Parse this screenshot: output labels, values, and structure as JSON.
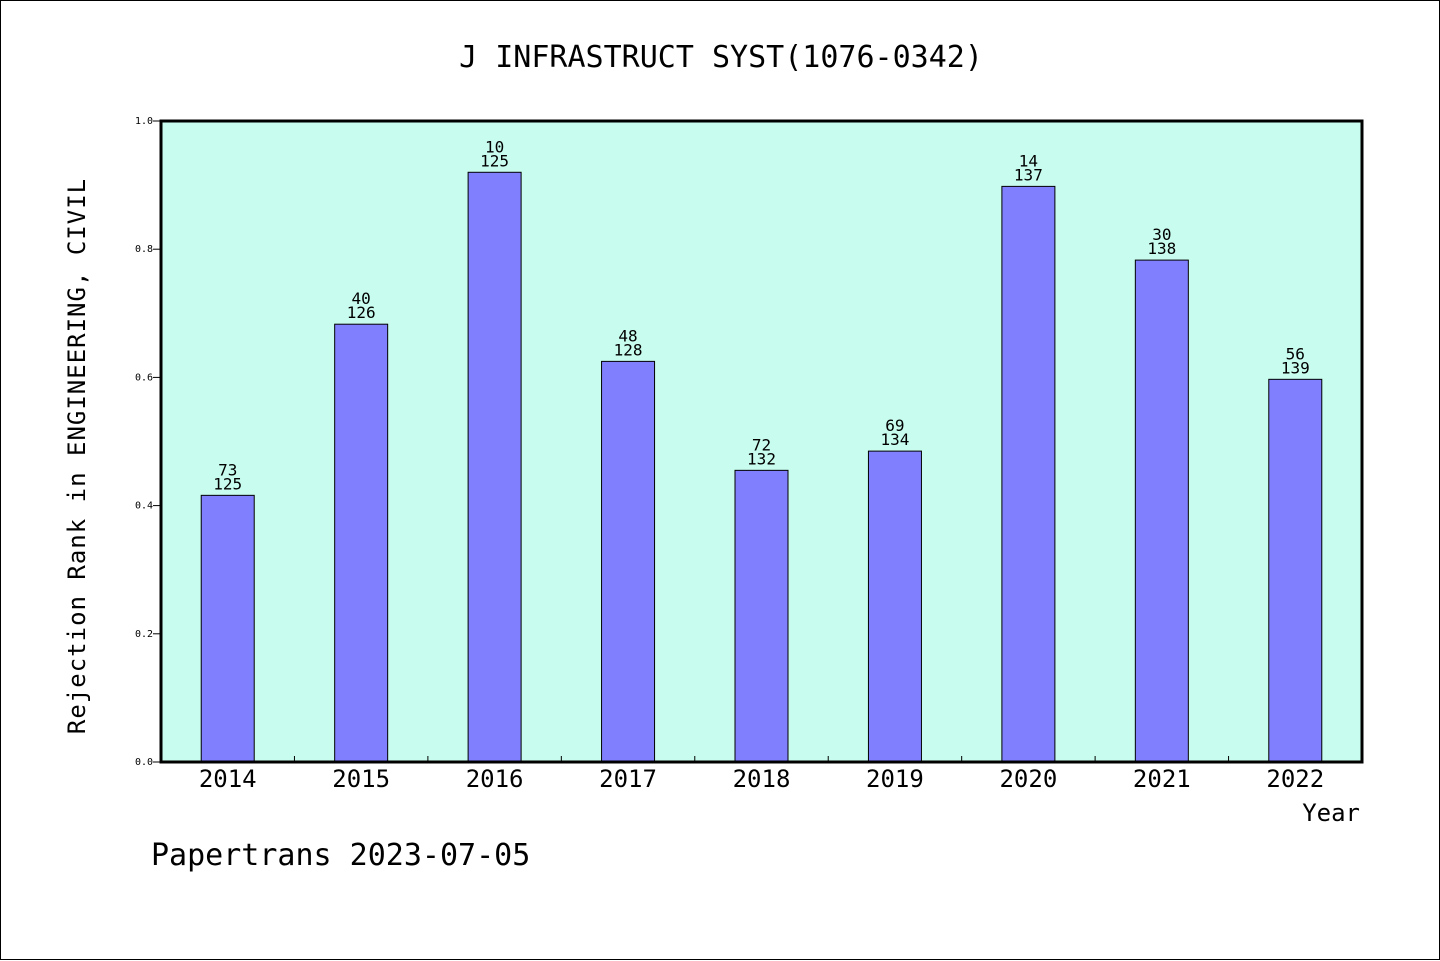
{
  "chart_data": {
    "type": "bar",
    "title": "J INFRASTRUCT SYST(1076-0342)",
    "xlabel": "Year",
    "ylabel": "Rejection Rank in ENGINEERING, CIVIL",
    "ylim": [
      0,
      1.0
    ],
    "yticks": [
      "0.0",
      "0.2",
      "0.4",
      "0.6",
      "0.8",
      "1.0"
    ],
    "grid": false,
    "categories": [
      "2014",
      "2015",
      "2016",
      "2017",
      "2018",
      "2019",
      "2020",
      "2021",
      "2022"
    ],
    "values": [
      0.416,
      0.683,
      0.92,
      0.625,
      0.455,
      0.485,
      0.898,
      0.783,
      0.597
    ],
    "rank_labels": [
      "73",
      "40",
      "10",
      "48",
      "72",
      "69",
      "14",
      "30",
      "56"
    ],
    "total_labels": [
      "125",
      "126",
      "125",
      "128",
      "132",
      "134",
      "137",
      "138",
      "139"
    ],
    "colors": {
      "plot_background": "#c8fcee",
      "bar_fill": "#8080ff",
      "bar_stroke": "#000000"
    }
  },
  "footer": "Papertrans 2023-07-05"
}
